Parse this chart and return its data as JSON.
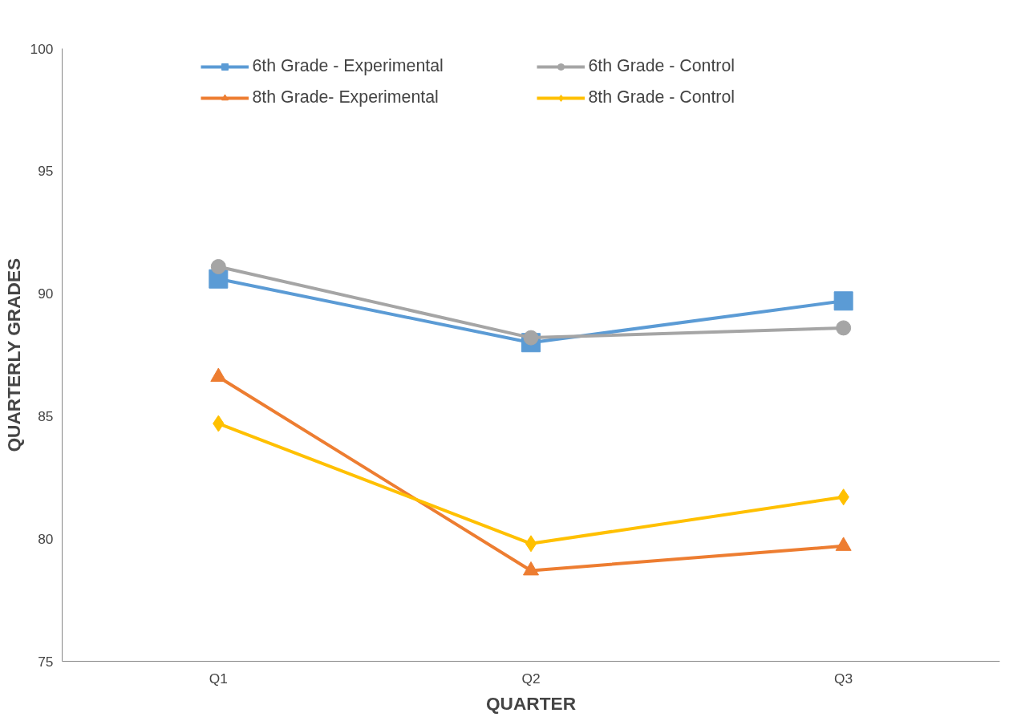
{
  "chart_data": {
    "type": "line",
    "xlabel": "QUARTER",
    "ylabel": "QUARTERLY GRADES",
    "categories": [
      "Q1",
      "Q2",
      "Q3"
    ],
    "series": [
      {
        "name": "6th Grade - Experimental",
        "color": "#5b9bd5",
        "marker": "square",
        "values": [
          90.6,
          88.0,
          89.7
        ]
      },
      {
        "name": "8th Grade- Experimental",
        "color": "#ed7d31",
        "marker": "triangle",
        "values": [
          86.6,
          78.7,
          79.7
        ]
      },
      {
        "name": "6th Grade - Control",
        "color": "#a5a5a5",
        "marker": "circle",
        "values": [
          91.1,
          88.2,
          88.6
        ]
      },
      {
        "name": "8th Grade - Control",
        "color": "#ffc000",
        "marker": "diamond",
        "values": [
          84.7,
          79.8,
          81.7
        ]
      }
    ],
    "ylim": [
      75,
      100
    ],
    "yticks": [
      75,
      80,
      85,
      90,
      95,
      100
    ],
    "grid": false,
    "legend": "top",
    "line_style": "solid"
  }
}
